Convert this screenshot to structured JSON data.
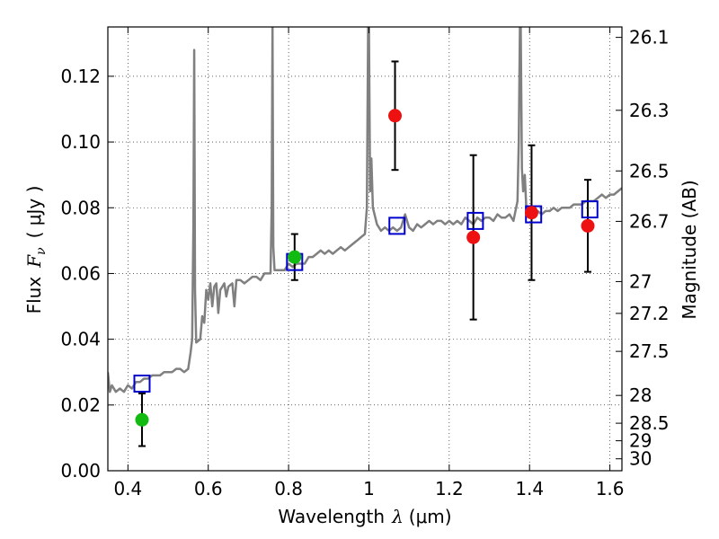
{
  "chart_data": {
    "type": "scatter",
    "xlabel_prefix": "Wavelength",
    "xlabel_var": "λ",
    "xlabel_unit": "(μm)",
    "ylabel_prefix": "Flux",
    "ylabel_var": "F",
    "ylabel_sub": "ν",
    "ylabel_unit": "( μJy )",
    "y2label": "Magnitude (AB)",
    "xlim": [
      0.35,
      1.63
    ],
    "ylim": [
      0.0,
      0.135
    ],
    "grid": true,
    "x_ticks": [
      "0.4",
      "0.6",
      "0.8",
      "1",
      "1.2",
      "1.4",
      "1.6"
    ],
    "y_ticks": [
      "0.00",
      "0.02",
      "0.04",
      "0.06",
      "0.08",
      "0.10",
      "0.12"
    ],
    "mag_ticks": [
      "26.1",
      "26.3",
      "26.5",
      "26.7",
      "27",
      "27.2",
      "27.5",
      "28",
      "28.5",
      "29",
      "30"
    ],
    "colors": {
      "spectrum": "#808080",
      "model_box": "#0000cc",
      "detection": "#ee1111",
      "ground": "#11bb11",
      "errorbar": "#000000"
    },
    "spectrum": [
      [
        0.35,
        0.03
      ],
      [
        0.355,
        0.024
      ],
      [
        0.36,
        0.026
      ],
      [
        0.37,
        0.024
      ],
      [
        0.38,
        0.025
      ],
      [
        0.39,
        0.024
      ],
      [
        0.4,
        0.026
      ],
      [
        0.41,
        0.025
      ],
      [
        0.42,
        0.027
      ],
      [
        0.43,
        0.027
      ],
      [
        0.44,
        0.028
      ],
      [
        0.45,
        0.028
      ],
      [
        0.46,
        0.029
      ],
      [
        0.47,
        0.029
      ],
      [
        0.48,
        0.029
      ],
      [
        0.49,
        0.03
      ],
      [
        0.5,
        0.03
      ],
      [
        0.51,
        0.03
      ],
      [
        0.52,
        0.031
      ],
      [
        0.53,
        0.031
      ],
      [
        0.54,
        0.03
      ],
      [
        0.55,
        0.031
      ],
      [
        0.556,
        0.036
      ],
      [
        0.56,
        0.04
      ],
      [
        0.563,
        0.075
      ],
      [
        0.565,
        0.128
      ],
      [
        0.567,
        0.055
      ],
      [
        0.57,
        0.039
      ],
      [
        0.58,
        0.04
      ],
      [
        0.585,
        0.047
      ],
      [
        0.59,
        0.045
      ],
      [
        0.595,
        0.055
      ],
      [
        0.6,
        0.052
      ],
      [
        0.605,
        0.057
      ],
      [
        0.61,
        0.05
      ],
      [
        0.615,
        0.056
      ],
      [
        0.62,
        0.057
      ],
      [
        0.625,
        0.048
      ],
      [
        0.63,
        0.055
      ],
      [
        0.635,
        0.056
      ],
      [
        0.64,
        0.057
      ],
      [
        0.645,
        0.053
      ],
      [
        0.65,
        0.056
      ],
      [
        0.66,
        0.057
      ],
      [
        0.665,
        0.05
      ],
      [
        0.67,
        0.058
      ],
      [
        0.68,
        0.058
      ],
      [
        0.69,
        0.057
      ],
      [
        0.7,
        0.058
      ],
      [
        0.71,
        0.059
      ],
      [
        0.72,
        0.059
      ],
      [
        0.73,
        0.058
      ],
      [
        0.74,
        0.06
      ],
      [
        0.75,
        0.06
      ],
      [
        0.755,
        0.06
      ],
      [
        0.758,
        0.08
      ],
      [
        0.76,
        0.135
      ],
      [
        0.762,
        0.068
      ],
      [
        0.765,
        0.061
      ],
      [
        0.77,
        0.061
      ],
      [
        0.78,
        0.061
      ],
      [
        0.79,
        0.061
      ],
      [
        0.8,
        0.063
      ],
      [
        0.81,
        0.062
      ],
      [
        0.82,
        0.063
      ],
      [
        0.83,
        0.063
      ],
      [
        0.84,
        0.063
      ],
      [
        0.85,
        0.065
      ],
      [
        0.86,
        0.065
      ],
      [
        0.87,
        0.066
      ],
      [
        0.88,
        0.067
      ],
      [
        0.89,
        0.066
      ],
      [
        0.9,
        0.067
      ],
      [
        0.91,
        0.066
      ],
      [
        0.92,
        0.067
      ],
      [
        0.93,
        0.068
      ],
      [
        0.94,
        0.067
      ],
      [
        0.95,
        0.068
      ],
      [
        0.96,
        0.069
      ],
      [
        0.97,
        0.07
      ],
      [
        0.98,
        0.071
      ],
      [
        0.99,
        0.072
      ],
      [
        0.995,
        0.08
      ],
      [
        0.998,
        0.135
      ],
      [
        1.0,
        0.135
      ],
      [
        1.003,
        0.085
      ],
      [
        1.006,
        0.095
      ],
      [
        1.01,
        0.08
      ],
      [
        1.02,
        0.075
      ],
      [
        1.03,
        0.073
      ],
      [
        1.04,
        0.074
      ],
      [
        1.05,
        0.073
      ],
      [
        1.06,
        0.074
      ],
      [
        1.07,
        0.073
      ],
      [
        1.08,
        0.074
      ],
      [
        1.09,
        0.078
      ],
      [
        1.1,
        0.074
      ],
      [
        1.11,
        0.073
      ],
      [
        1.12,
        0.075
      ],
      [
        1.13,
        0.074
      ],
      [
        1.14,
        0.075
      ],
      [
        1.15,
        0.076
      ],
      [
        1.16,
        0.075
      ],
      [
        1.17,
        0.076
      ],
      [
        1.18,
        0.076
      ],
      [
        1.19,
        0.075
      ],
      [
        1.2,
        0.076
      ],
      [
        1.21,
        0.075
      ],
      [
        1.22,
        0.076
      ],
      [
        1.23,
        0.075
      ],
      [
        1.24,
        0.077
      ],
      [
        1.25,
        0.076
      ],
      [
        1.26,
        0.075
      ],
      [
        1.27,
        0.077
      ],
      [
        1.28,
        0.076
      ],
      [
        1.29,
        0.077
      ],
      [
        1.3,
        0.077
      ],
      [
        1.31,
        0.076
      ],
      [
        1.32,
        0.078
      ],
      [
        1.33,
        0.077
      ],
      [
        1.34,
        0.077
      ],
      [
        1.35,
        0.078
      ],
      [
        1.36,
        0.076
      ],
      [
        1.37,
        0.082
      ],
      [
        1.373,
        0.1
      ],
      [
        1.376,
        0.135
      ],
      [
        1.378,
        0.135
      ],
      [
        1.381,
        0.092
      ],
      [
        1.384,
        0.085
      ],
      [
        1.388,
        0.09
      ],
      [
        1.392,
        0.08
      ],
      [
        1.4,
        0.078
      ],
      [
        1.41,
        0.078
      ],
      [
        1.42,
        0.079
      ],
      [
        1.43,
        0.078
      ],
      [
        1.44,
        0.079
      ],
      [
        1.45,
        0.079
      ],
      [
        1.46,
        0.08
      ],
      [
        1.47,
        0.079
      ],
      [
        1.48,
        0.08
      ],
      [
        1.49,
        0.08
      ],
      [
        1.5,
        0.08
      ],
      [
        1.51,
        0.081
      ],
      [
        1.52,
        0.081
      ],
      [
        1.53,
        0.081
      ],
      [
        1.54,
        0.082
      ],
      [
        1.55,
        0.082
      ],
      [
        1.56,
        0.082
      ],
      [
        1.57,
        0.083
      ],
      [
        1.58,
        0.084
      ],
      [
        1.59,
        0.083
      ],
      [
        1.6,
        0.084
      ],
      [
        1.61,
        0.084
      ],
      [
        1.62,
        0.085
      ],
      [
        1.63,
        0.086
      ]
    ],
    "model_points": [
      {
        "x": 0.435,
        "y": 0.0265
      },
      {
        "x": 0.815,
        "y": 0.0635
      },
      {
        "x": 1.07,
        "y": 0.0745
      },
      {
        "x": 1.265,
        "y": 0.076
      },
      {
        "x": 1.41,
        "y": 0.078
      },
      {
        "x": 1.55,
        "y": 0.0795
      }
    ],
    "detections": [
      {
        "x": 1.065,
        "y": 0.108,
        "err": 0.0165
      },
      {
        "x": 1.26,
        "y": 0.071,
        "err": 0.025
      },
      {
        "x": 1.405,
        "y": 0.0785,
        "err": 0.0205
      },
      {
        "x": 1.545,
        "y": 0.0745,
        "err": 0.014
      }
    ],
    "ground_points": [
      {
        "x": 0.435,
        "y": 0.0155,
        "err": 0.008
      },
      {
        "x": 0.815,
        "y": 0.065,
        "err": 0.007
      }
    ]
  }
}
